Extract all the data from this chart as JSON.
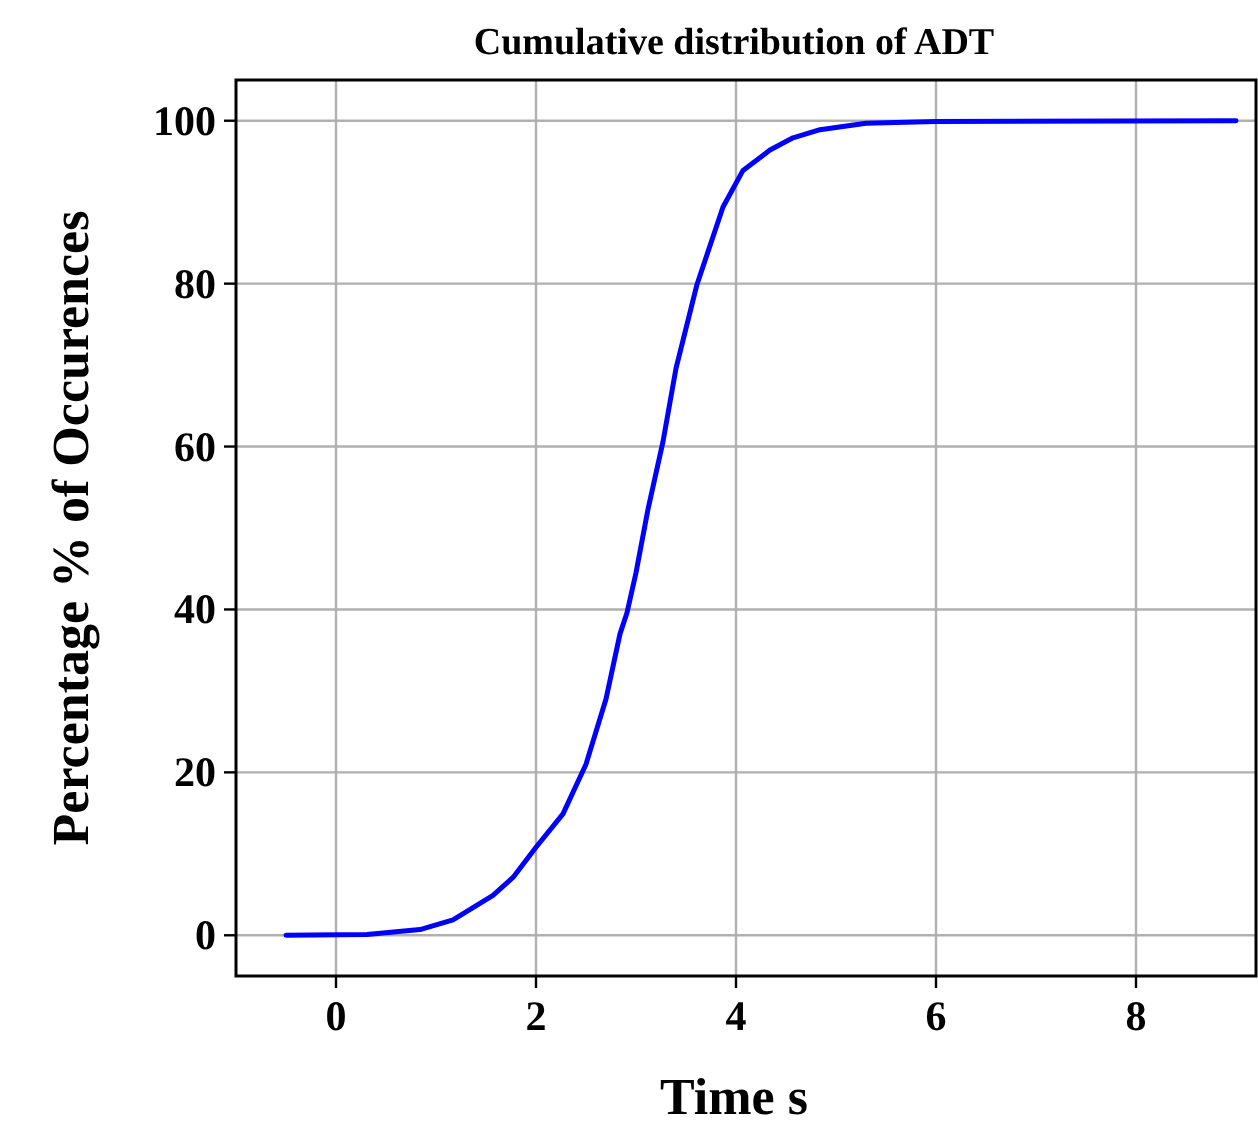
{
  "chart_data": {
    "type": "line",
    "title": "Cumulative distribution of ADT",
    "xlabel": "Time s",
    "ylabel": "Percentage % of Occurences",
    "x": [
      -0.5,
      0.31,
      0.84,
      1.17,
      1.57,
      1.77,
      2.0,
      2.27,
      2.5,
      2.7,
      2.84,
      2.91,
      3.0,
      3.12,
      3.27,
      3.4,
      3.61,
      3.87,
      4.07,
      4.34,
      4.57,
      4.84,
      5.3,
      6.0,
      9.0
    ],
    "series": [
      {
        "color": "#0000ff",
        "values": [
          0,
          0.1,
          0.7,
          1.9,
          4.9,
          7.1,
          10.8,
          14.9,
          21,
          29,
          37,
          39.6,
          44.5,
          52.3,
          60.6,
          69.6,
          79.9,
          89.4,
          93.9,
          96.4,
          97.9,
          98.9,
          99.7,
          99.9,
          100
        ]
      }
    ],
    "xlim": [
      -1,
      9.2
    ],
    "xticks": [
      0,
      2,
      4,
      6,
      8
    ],
    "ylim": [
      -5,
      105
    ],
    "yticks": [
      0,
      20,
      40,
      60,
      80,
      100
    ],
    "grid": true,
    "marker": "none",
    "line_style": "solid"
  }
}
